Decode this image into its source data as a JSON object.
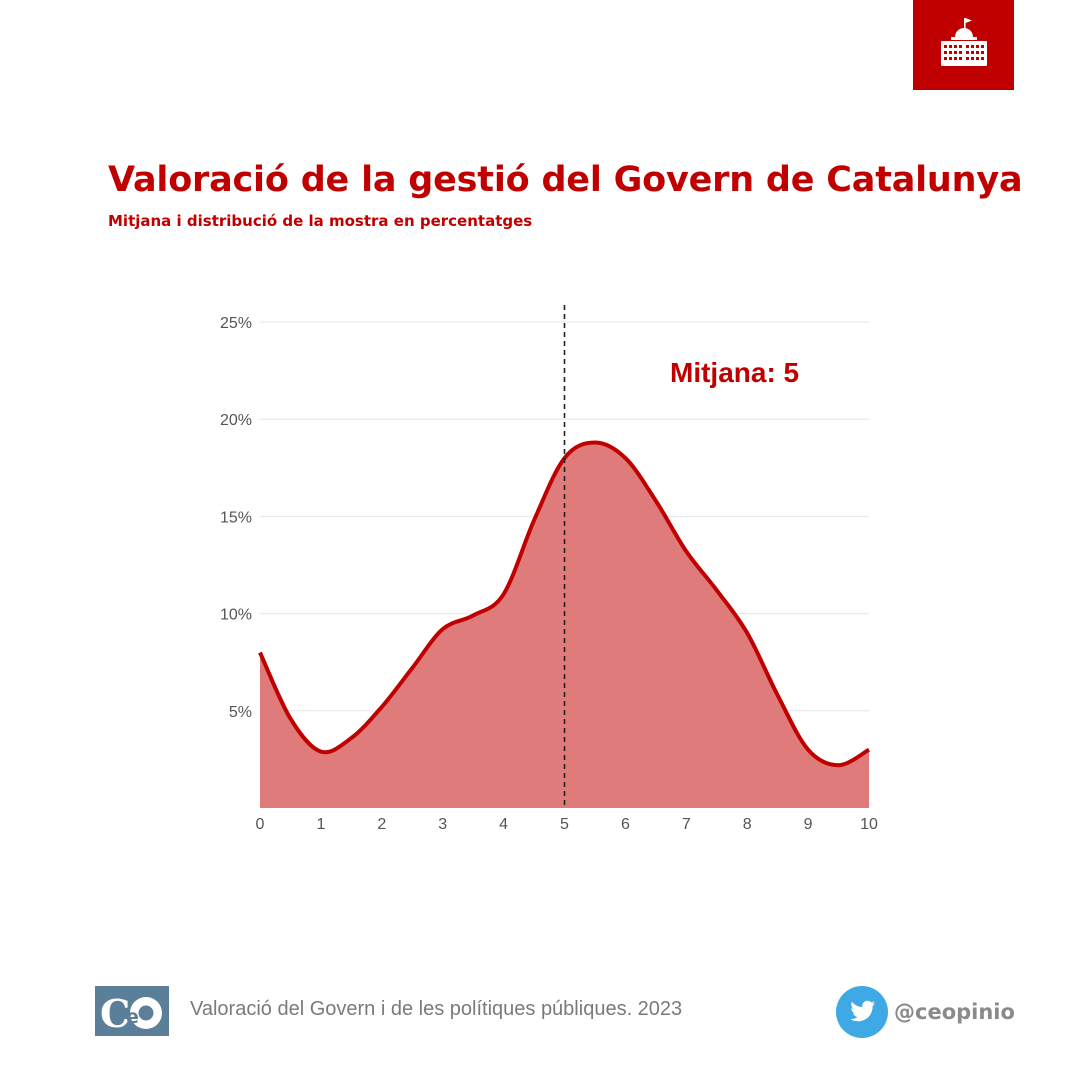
{
  "header": {
    "title": "Valoració de la gestió del Govern de Catalunya",
    "subtitle": "Mitjana i distribució de la mostra en percentatges",
    "badge_icon": "parliament-building-icon"
  },
  "chart_data": {
    "type": "area",
    "x": [
      0,
      0.5,
      1,
      1.5,
      2,
      2.5,
      3,
      3.5,
      4,
      4.5,
      5,
      5.5,
      6,
      6.5,
      7,
      7.5,
      8,
      8.5,
      9,
      9.5,
      10
    ],
    "values": [
      8,
      4.6,
      2.9,
      3.6,
      5.2,
      7.2,
      9.2,
      9.9,
      11.0,
      14.8,
      18.0,
      18.8,
      18.0,
      15.8,
      13.2,
      11.2,
      9.0,
      5.8,
      3.0,
      2.2,
      3.0
    ],
    "xlim": [
      0,
      10
    ],
    "ylim": [
      0,
      25
    ],
    "x_ticks": [
      "0",
      "1",
      "2",
      "3",
      "4",
      "5",
      "6",
      "7",
      "8",
      "9",
      "10"
    ],
    "y_ticks": [
      {
        "value": 5,
        "label": "5%"
      },
      {
        "value": 10,
        "label": "10%"
      },
      {
        "value": 15,
        "label": "15%"
      },
      {
        "value": 20,
        "label": "20%"
      },
      {
        "value": 25,
        "label": "25%"
      }
    ],
    "mean": 5,
    "mean_label": "Mitjana: 5",
    "grid": true,
    "colors": {
      "line": "#c00000",
      "fill": "#e07b7b",
      "grid": "#e6e6e6",
      "mean_line": "#222222",
      "tick_label": "#555555",
      "annotation": "#c00000"
    }
  },
  "footer": {
    "logo_text": "CeO",
    "source": "Valoració del Govern i de les polítiques públiques. 2023",
    "twitter_icon": "twitter-bird-icon",
    "twitter_handle": "@ceopinio"
  },
  "colors": {
    "brand_red": "#c00000",
    "logo_blue": "#5b7f98",
    "twitter_blue": "#3fa9e6"
  }
}
